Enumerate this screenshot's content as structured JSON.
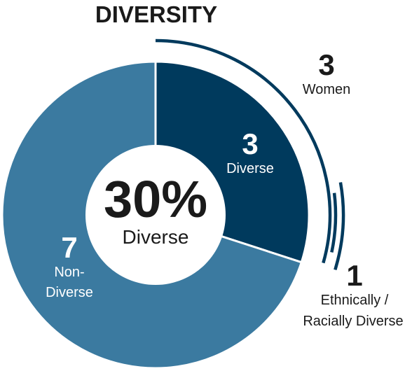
{
  "chart_data": {
    "type": "pie",
    "title": "DIVERSITY",
    "center": {
      "value": "30%",
      "label": "Diverse"
    },
    "slices": [
      {
        "key": "diverse",
        "value": 3,
        "value_label": "3",
        "label": "Diverse",
        "color": "#003a5d"
      },
      {
        "key": "non_diverse",
        "value": 7,
        "value_label": "7",
        "label_line1": "Non-",
        "label_line2": "Diverse",
        "color": "#3b7aa0"
      }
    ],
    "subsets": [
      {
        "key": "women",
        "value": 3,
        "value_label": "3",
        "label": "Women",
        "color": "#003a5d"
      },
      {
        "key": "ethnic",
        "value": 1,
        "value_label": "1",
        "label_line1": "Ethnically /",
        "label_line2": "Racially Diverse",
        "color": "#003a5d"
      }
    ]
  }
}
